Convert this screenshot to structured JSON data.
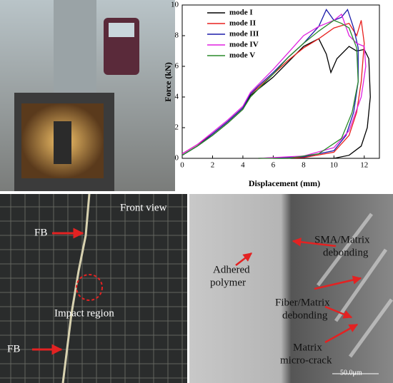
{
  "chart_data": {
    "type": "line",
    "xlabel": "Displacement (mm)",
    "ylabel": "Force (kN)",
    "xlim": [
      0,
      13
    ],
    "ylim": [
      0,
      10
    ],
    "xticks": [
      0,
      2,
      4,
      6,
      8,
      10,
      12
    ],
    "yticks": [
      0,
      2,
      4,
      6,
      8,
      10
    ],
    "legend": "upper left",
    "series": [
      {
        "name": "mode I",
        "color": "#000000",
        "x": [
          0,
          1,
          2,
          3,
          4,
          4.5,
          5,
          6,
          7,
          8,
          9,
          9.5,
          9.8,
          10.2,
          11,
          11.5,
          12,
          12.3,
          12.4,
          12.2,
          11.8,
          11,
          10,
          8,
          6
        ],
        "values": [
          0.2,
          0.8,
          1.5,
          2.3,
          3.2,
          4.1,
          4.5,
          5.3,
          6.3,
          7.3,
          7.8,
          6.8,
          5.6,
          6.5,
          7.3,
          7.0,
          7.1,
          6.5,
          4.0,
          2.0,
          0.8,
          0.2,
          0,
          0,
          0
        ]
      },
      {
        "name": "mode II",
        "color": "#e8201e",
        "x": [
          0,
          1,
          2,
          3,
          4,
          4.5,
          5,
          6,
          7,
          8,
          9,
          10,
          11,
          11.5,
          11.8,
          12,
          11.8,
          11.5,
          11,
          10,
          8,
          5
        ],
        "values": [
          0.3,
          0.9,
          1.6,
          2.4,
          3.3,
          4.2,
          4.6,
          5.5,
          6.4,
          7.2,
          7.8,
          8.5,
          8.8,
          8.0,
          9.0,
          7.5,
          5.0,
          3.0,
          1.5,
          0.4,
          0.05,
          0
        ]
      },
      {
        "name": "mode III",
        "color": "#1c1caa",
        "x": [
          0,
          1,
          2,
          3,
          4,
          4.5,
          5,
          6,
          7,
          8,
          9,
          9.5,
          10,
          10.5,
          10.9,
          11.3,
          11.6,
          11.6,
          11.3,
          10.8,
          10,
          8,
          5
        ],
        "values": [
          0.2,
          0.8,
          1.6,
          2.4,
          3.3,
          4.2,
          4.7,
          5.6,
          6.6,
          7.5,
          8.6,
          9.7,
          9.0,
          9.2,
          9.7,
          8.5,
          7.2,
          5.0,
          3.0,
          1.5,
          0.5,
          0.1,
          0
        ]
      },
      {
        "name": "mode IV",
        "color": "#e020e0",
        "x": [
          0,
          1,
          2,
          3,
          4,
          4.5,
          5,
          6,
          7,
          8,
          9,
          9.5,
          10,
          10.5,
          11,
          11.5,
          12,
          12.1,
          11.8,
          11,
          10,
          8,
          5
        ],
        "values": [
          0.3,
          0.9,
          1.7,
          2.5,
          3.4,
          4.3,
          4.8,
          5.8,
          6.9,
          8.0,
          8.6,
          8.8,
          9.0,
          9.4,
          8.0,
          7.5,
          7.3,
          6.0,
          4.0,
          1.8,
          0.7,
          0.15,
          0
        ]
      },
      {
        "name": "mode V",
        "color": "#2a8a2a",
        "x": [
          0,
          1,
          2,
          3,
          4,
          4.5,
          5,
          6,
          7,
          8,
          9,
          10,
          10.5,
          11,
          11.5,
          11.6,
          11.2,
          10.5,
          9,
          7,
          5
        ],
        "values": [
          0.2,
          0.8,
          1.5,
          2.3,
          3.2,
          4.0,
          4.5,
          5.5,
          6.6,
          7.5,
          8.3,
          9.0,
          8.8,
          8.5,
          7.2,
          5.0,
          3.0,
          1.3,
          0.3,
          0,
          0
        ]
      }
    ]
  },
  "panels": {
    "front": {
      "view": "Front view",
      "fb_top": "FB",
      "impact": "Impact region",
      "fb_bottom": "FB"
    },
    "sem": {
      "sma": [
        "SMA/Matrix",
        "debonding"
      ],
      "adhered": [
        "Adhered",
        "polymer"
      ],
      "fiber": [
        "Fiber/Matrix",
        "debonding"
      ],
      "matrix": [
        "Matrix",
        "micro-crack"
      ],
      "scale": "50.0μm"
    }
  }
}
